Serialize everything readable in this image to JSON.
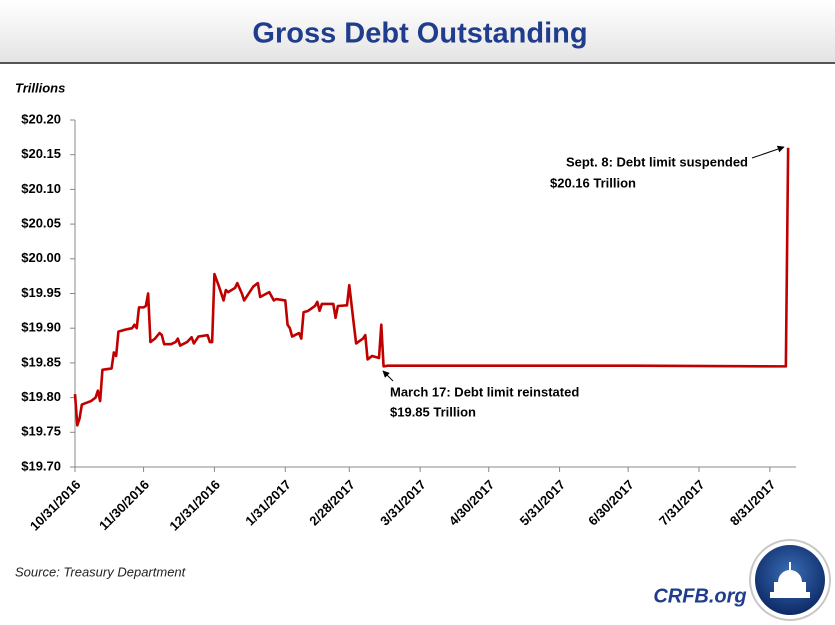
{
  "chart_data": {
    "type": "line",
    "title": "Gross Debt Outstanding",
    "y_label": "Trillions",
    "source": "Source: Treasury Department",
    "brand": "CRFB.org",
    "x": [
      "10/31/2016",
      "11/1/2016",
      "11/2/2016",
      "11/3/2016",
      "11/7/2016",
      "11/9/2016",
      "11/10/2016",
      "11/11/2016",
      "11/12/2016",
      "11/16/2016",
      "11/17/2016",
      "11/18/2016",
      "11/19/2016",
      "11/22/2016",
      "11/25/2016",
      "11/26/2016",
      "11/27/2016",
      "11/28/2016",
      "11/30/2016",
      "12/1/2016",
      "12/2/2016",
      "12/3/2016",
      "12/5/2016",
      "12/7/2016",
      "12/8/2016",
      "12/9/2016",
      "12/12/2016",
      "12/14/2016",
      "12/15/2016",
      "12/16/2016",
      "12/19/2016",
      "12/21/2016",
      "12/22/2016",
      "12/24/2016",
      "12/28/2016",
      "12/29/2016",
      "12/30/2016",
      "12/31/2016",
      "1/2/2017",
      "1/4/2017",
      "1/5/2017",
      "1/6/2017",
      "1/9/2017",
      "1/10/2017",
      "1/12/2017",
      "1/13/2017",
      "1/17/2017",
      "1/19/2017",
      "1/20/2017",
      "1/24/2017",
      "1/26/2017",
      "1/27/2017",
      "1/31/2017",
      "2/1/2017",
      "2/2/2017",
      "2/3/2017",
      "2/6/2017",
      "2/7/2017",
      "2/8/2017",
      "2/10/2017",
      "2/13/2017",
      "2/14/2017",
      "2/15/2017",
      "2/16/2017",
      "2/21/2017",
      "2/22/2017",
      "2/23/2017",
      "2/27/2017",
      "2/28/2017",
      "3/2/2017",
      "3/3/2017",
      "3/6/2017",
      "3/7/2017",
      "3/8/2017",
      "3/10/2017",
      "3/13/2017",
      "3/14/2017",
      "3/15/2017",
      "3/17/2017",
      "4/30/2017",
      "6/30/2017",
      "9/7/2017",
      "9/8/2017"
    ],
    "series": [
      {
        "name": "Gross Debt Outstanding",
        "color": "#c00000",
        "values": [
          19.805,
          19.76,
          19.77,
          19.79,
          19.795,
          19.8,
          19.81,
          19.795,
          19.84,
          19.842,
          19.865,
          19.86,
          19.895,
          19.898,
          19.9,
          19.905,
          19.9,
          19.93,
          19.93,
          19.932,
          19.95,
          19.88,
          19.885,
          19.893,
          19.89,
          19.877,
          19.877,
          19.88,
          19.885,
          19.875,
          19.88,
          19.887,
          19.878,
          19.888,
          19.89,
          19.88,
          19.88,
          19.978,
          19.96,
          19.94,
          19.955,
          19.952,
          19.958,
          19.965,
          19.95,
          19.94,
          19.96,
          19.965,
          19.945,
          19.952,
          19.94,
          19.942,
          19.94,
          19.905,
          19.9,
          19.888,
          19.893,
          19.885,
          19.923,
          19.925,
          19.932,
          19.938,
          19.925,
          19.935,
          19.935,
          19.915,
          19.932,
          19.933,
          19.962,
          19.905,
          19.878,
          19.885,
          19.89,
          19.855,
          19.86,
          19.857,
          19.905,
          19.845,
          19.846,
          19.846,
          19.846,
          19.845,
          20.16
        ]
      }
    ],
    "xlim": [
      "10/31/2016",
      "9/11/2017"
    ],
    "xticks": [
      "10/31/2016",
      "11/30/2016",
      "12/31/2016",
      "1/31/2017",
      "2/28/2017",
      "3/31/2017",
      "4/30/2017",
      "5/31/2017",
      "6/30/2017",
      "7/31/2017",
      "8/31/2017"
    ],
    "ylim": [
      19.7,
      20.2
    ],
    "yticks": [
      {
        "value": 19.7,
        "label": "$19.70"
      },
      {
        "value": 19.75,
        "label": "$19.75"
      },
      {
        "value": 19.8,
        "label": "$19.80"
      },
      {
        "value": 19.85,
        "label": "$19.85"
      },
      {
        "value": 19.9,
        "label": "$19.90"
      },
      {
        "value": 19.95,
        "label": "$19.95"
      },
      {
        "value": 20.0,
        "label": "$20.00"
      },
      {
        "value": 20.05,
        "label": "$20.05"
      },
      {
        "value": 20.1,
        "label": "$20.10"
      },
      {
        "value": 20.15,
        "label": "$20.15"
      },
      {
        "value": 20.2,
        "label": "$20.20"
      }
    ],
    "grid": false,
    "annotations": [
      {
        "lines": [
          "March 17: Debt limit reinstated",
          "$19.85 Trillion"
        ]
      },
      {
        "lines": [
          "Sept. 8: Debt limit suspended",
          "$20.16 Trillion"
        ]
      }
    ]
  }
}
